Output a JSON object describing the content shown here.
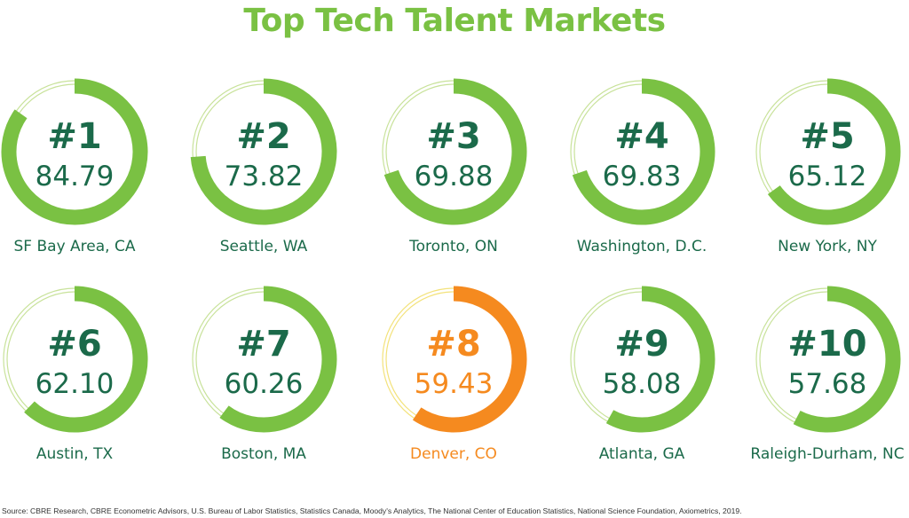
{
  "title": "Top Tech Talent Markets",
  "source": "Source: CBRE Research, CBRE Econometric Advisors, U.S. Bureau of Labor Statistics, Statistics Canada, Moody's Analytics,  The National Center of Education Statistics, National Science Foundation, Axiometrics, 2019.",
  "colors": {
    "title": "#7ac143",
    "arc": "#7ac143",
    "arc_highlight": "#f58a1f",
    "track": "#c8e29a",
    "track_highlight": "#f3e27a",
    "rank_text": "#1b6a4a",
    "value_text": "#1b6a4a",
    "label_text": "#1b6a4a",
    "highlight_text": "#f58a1f",
    "source_text": "#333333"
  },
  "chart_data": {
    "type": "radial-progress",
    "title": "Top Tech Talent Markets",
    "max": 100,
    "items": [
      {
        "rank": "#1",
        "value": "84.79",
        "score": 84.79,
        "label": "SF Bay Area, CA",
        "highlight": false
      },
      {
        "rank": "#2",
        "value": "73.82",
        "score": 73.82,
        "label": "Seattle, WA",
        "highlight": false
      },
      {
        "rank": "#3",
        "value": "69.88",
        "score": 69.88,
        "label": "Toronto, ON",
        "highlight": false
      },
      {
        "rank": "#4",
        "value": "69.83",
        "score": 69.83,
        "label": "Washington, D.C.",
        "highlight": false
      },
      {
        "rank": "#5",
        "value": "65.12",
        "score": 65.12,
        "label": "New York, NY",
        "highlight": false
      },
      {
        "rank": "#6",
        "value": "62.10",
        "score": 62.1,
        "label": "Austin, TX",
        "highlight": false
      },
      {
        "rank": "#7",
        "value": "60.26",
        "score": 60.26,
        "label": "Boston, MA",
        "highlight": false
      },
      {
        "rank": "#8",
        "value": "59.43",
        "score": 59.43,
        "label": "Denver, CO",
        "highlight": true
      },
      {
        "rank": "#9",
        "value": "58.08",
        "score": 58.08,
        "label": "Atlanta, GA",
        "highlight": false
      },
      {
        "rank": "#10",
        "value": "57.68",
        "score": 57.68,
        "label": "Raleigh-Durham, NC",
        "highlight": false
      }
    ]
  }
}
